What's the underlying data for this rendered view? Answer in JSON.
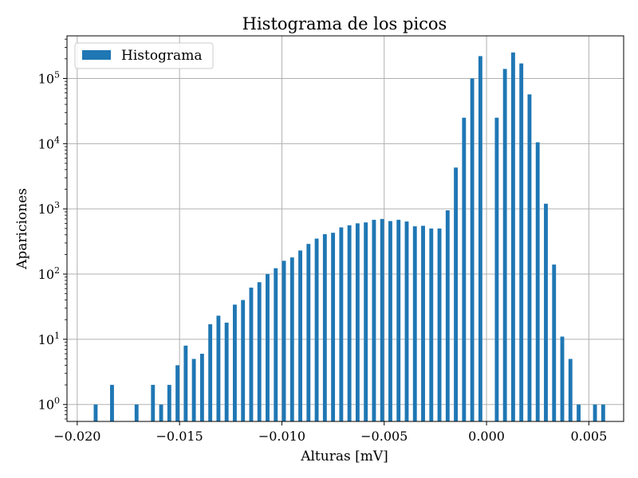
{
  "chart_data": {
    "type": "bar",
    "title": "Histograma de los picos",
    "xlabel": "Alturas [mV]",
    "ylabel": "Apariciones",
    "yscale": "log",
    "xlim": [
      -0.0205,
      0.0067
    ],
    "ylim": [
      0.55,
      450000
    ],
    "grid": true,
    "legend_position": "top-left",
    "bar_color": "#1f77b4",
    "bar_width": 0.00019,
    "x_ticks": [
      {
        "value": -0.02,
        "label": "−0.020"
      },
      {
        "value": -0.015,
        "label": "−0.015"
      },
      {
        "value": -0.01,
        "label": "−0.010"
      },
      {
        "value": -0.005,
        "label": "−0.005"
      },
      {
        "value": 0.0,
        "label": "0.000"
      },
      {
        "value": 0.005,
        "label": "0.005"
      }
    ],
    "y_ticks": [
      {
        "value": 1,
        "base": "10",
        "exp": "0"
      },
      {
        "value": 10,
        "base": "10",
        "exp": "1"
      },
      {
        "value": 100,
        "base": "10",
        "exp": "2"
      },
      {
        "value": 1000,
        "base": "10",
        "exp": "3"
      },
      {
        "value": 10000,
        "base": "10",
        "exp": "4"
      },
      {
        "value": 100000,
        "base": "10",
        "exp": "5"
      }
    ],
    "series": [
      {
        "name": "Histograma",
        "x": [
          -0.0191,
          -0.0183,
          -0.0171,
          -0.0163,
          -0.0159,
          -0.0155,
          -0.0151,
          -0.0147,
          -0.0143,
          -0.0139,
          -0.0135,
          -0.0131,
          -0.0127,
          -0.0123,
          -0.0119,
          -0.0115,
          -0.0111,
          -0.0107,
          -0.0103,
          -0.0099,
          -0.0095,
          -0.0091,
          -0.0087,
          -0.0083,
          -0.0079,
          -0.0075,
          -0.0071,
          -0.0067,
          -0.0063,
          -0.0059,
          -0.0055,
          -0.0051,
          -0.0047,
          -0.0043,
          -0.0039,
          -0.0035,
          -0.0031,
          -0.0027,
          -0.0023,
          -0.0019,
          -0.0015,
          -0.0011,
          -0.0007,
          -0.0003,
          0.0005,
          0.0009,
          0.0013,
          0.0017,
          0.0021,
          0.0025,
          0.0029,
          0.0033,
          0.0037,
          0.0041,
          0.0045,
          0.0053,
          0.0057
        ],
        "values": [
          1,
          2,
          1,
          2,
          1,
          2,
          4,
          8,
          5,
          6,
          17,
          23,
          18,
          34,
          40,
          62,
          75,
          100,
          123,
          160,
          180,
          230,
          290,
          350,
          410,
          430,
          520,
          560,
          600,
          620,
          680,
          700,
          650,
          680,
          640,
          540,
          550,
          500,
          500,
          950,
          4300,
          25000,
          100000,
          220000,
          25000,
          140000,
          250000,
          170000,
          57000,
          10500,
          1200,
          140,
          11,
          5,
          1,
          1,
          1
        ]
      }
    ]
  }
}
